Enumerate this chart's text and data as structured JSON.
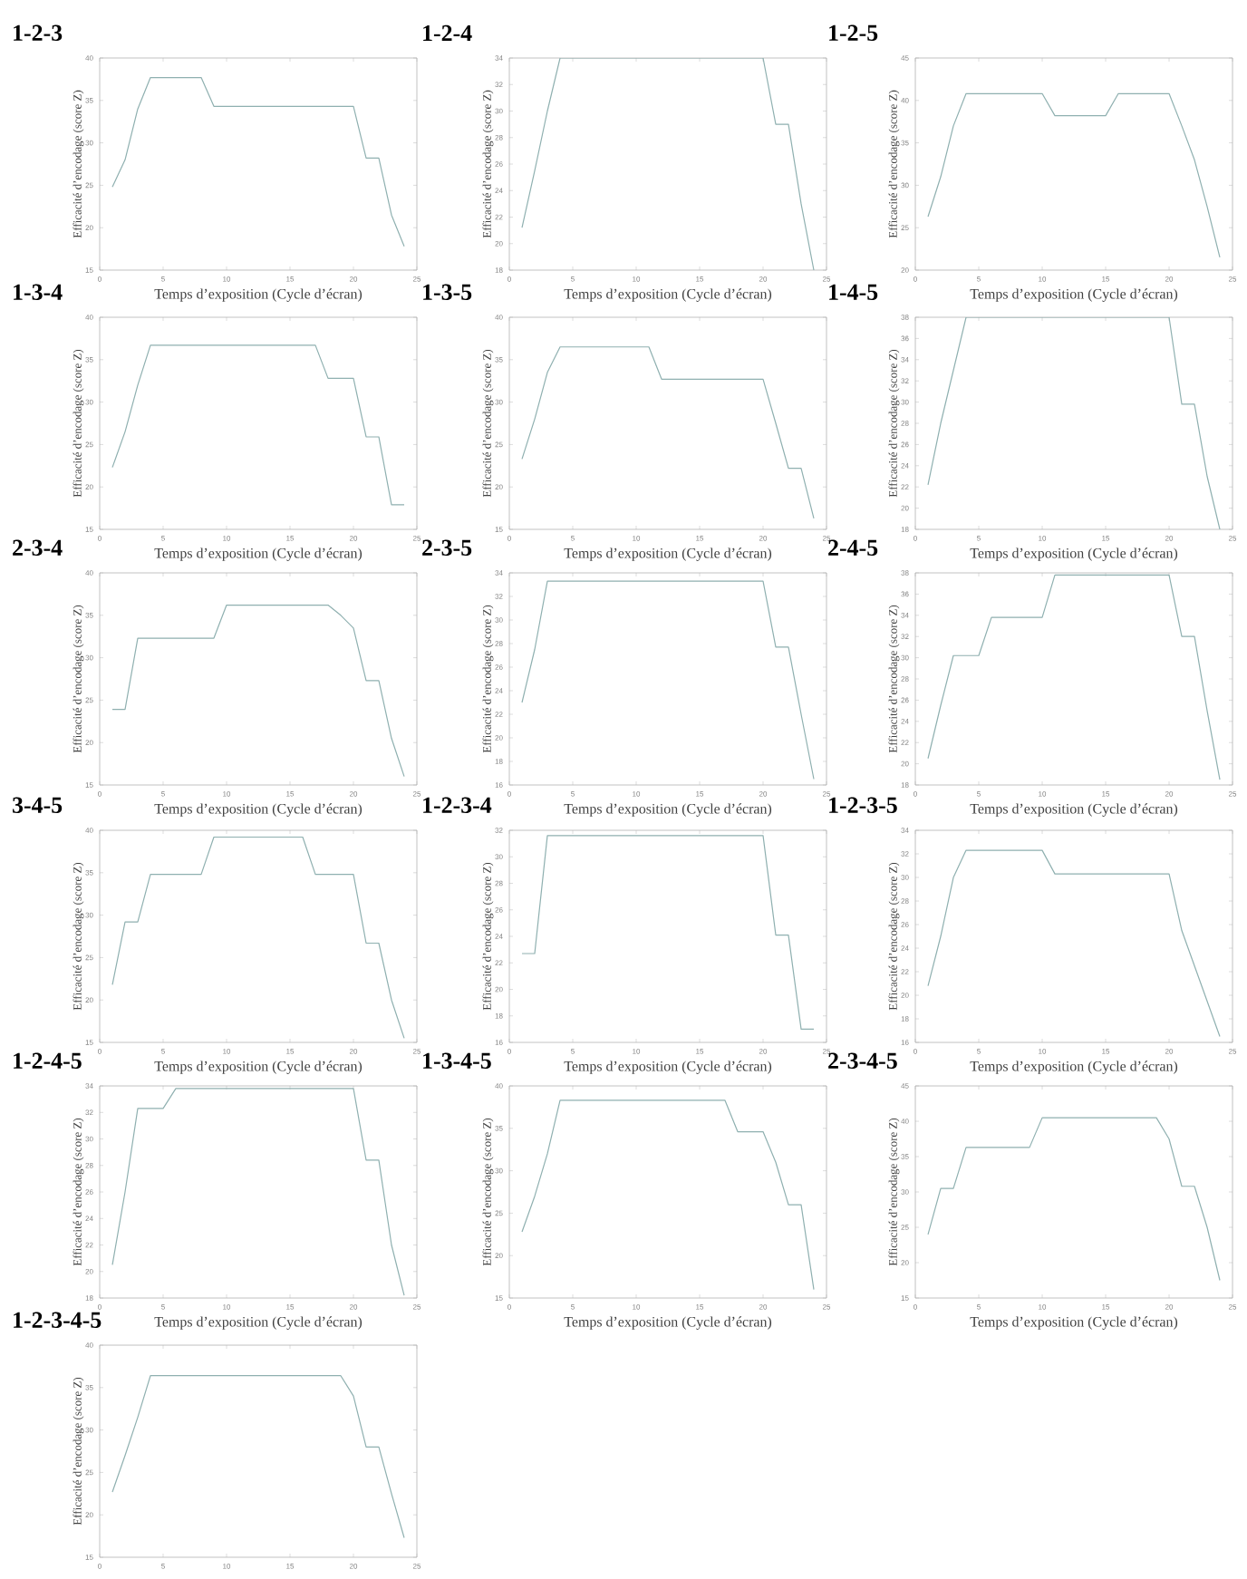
{
  "chart_data": [
    {
      "type": "line",
      "title": "1-2-3",
      "xlabel": "Temps d’exposition (Cycle d’écran)",
      "ylabel": "Efficacité d’encodage (score Z)",
      "color": "#8fb0b0",
      "xlim": [
        0,
        25
      ],
      "ylim": [
        15,
        40
      ],
      "xticks": [
        0,
        5,
        10,
        15,
        20,
        25
      ],
      "yticks": [
        15,
        20,
        25,
        30,
        35,
        40
      ],
      "x": [
        1,
        2,
        3,
        4,
        8,
        9,
        20,
        21,
        22,
        23,
        24
      ],
      "values": [
        24.8,
        28,
        34,
        37.7,
        37.7,
        34.3,
        34.3,
        28.2,
        28.2,
        21.5,
        17.8
      ]
    },
    {
      "type": "line",
      "title": "1-2-4",
      "xlabel": "Temps d’exposition (Cycle d’écran)",
      "ylabel": "Efficacité d’encodage (score Z)",
      "color": "#8fb0b0",
      "xlim": [
        0,
        25
      ],
      "ylim": [
        18,
        34
      ],
      "xticks": [
        0,
        5,
        10,
        15,
        20,
        25
      ],
      "yticks": [
        18,
        20,
        22,
        24,
        26,
        28,
        30,
        32,
        34
      ],
      "x": [
        1,
        2,
        3,
        4,
        20,
        21,
        22,
        23,
        24
      ],
      "values": [
        21.2,
        25.5,
        30,
        34,
        34,
        29,
        29,
        23,
        18
      ]
    },
    {
      "type": "line",
      "title": "1-2-5",
      "xlabel": "Temps d’exposition (Cycle d’écran)",
      "ylabel": "Efficacité d’encodage (score Z)",
      "color": "#8fb0b0",
      "xlim": [
        0,
        25
      ],
      "ylim": [
        20,
        45
      ],
      "xticks": [
        0,
        5,
        10,
        15,
        20,
        25
      ],
      "yticks": [
        20,
        25,
        30,
        35,
        40,
        45
      ],
      "x": [
        1,
        2,
        3,
        4,
        10,
        11,
        15,
        16,
        20,
        21,
        22,
        23,
        24
      ],
      "values": [
        26.3,
        31,
        37,
        40.8,
        40.8,
        38.2,
        38.2,
        40.8,
        40.8,
        37,
        33,
        27.5,
        21.5
      ]
    },
    {
      "type": "line",
      "title": "1-3-4",
      "xlabel": "Temps d’exposition (Cycle d’écran)",
      "ylabel": "Efficacité d’encodage (score Z)",
      "color": "#8fb0b0",
      "xlim": [
        0,
        25
      ],
      "ylim": [
        15,
        40
      ],
      "xticks": [
        0,
        5,
        10,
        15,
        20,
        25
      ],
      "yticks": [
        15,
        20,
        25,
        30,
        35,
        40
      ],
      "x": [
        1,
        2,
        3,
        4,
        17,
        18,
        20,
        21,
        22,
        23,
        24
      ],
      "values": [
        22.3,
        26.5,
        32,
        36.7,
        36.7,
        32.8,
        32.8,
        25.9,
        25.9,
        17.9,
        17.9
      ]
    },
    {
      "type": "line",
      "title": "1-3-5",
      "xlabel": "Temps d’exposition (Cycle d’écran)",
      "ylabel": "Efficacité d’encodage (score Z)",
      "color": "#8fb0b0",
      "xlim": [
        0,
        25
      ],
      "ylim": [
        15,
        40
      ],
      "xticks": [
        0,
        5,
        10,
        15,
        20,
        25
      ],
      "yticks": [
        15,
        20,
        25,
        30,
        35,
        40
      ],
      "x": [
        1,
        2,
        3,
        4,
        11,
        12,
        20,
        21,
        22,
        23,
        24
      ],
      "values": [
        23.3,
        28,
        33.5,
        36.5,
        36.5,
        32.7,
        32.7,
        27.5,
        22.2,
        22.2,
        16.3
      ]
    },
    {
      "type": "line",
      "title": "1-4-5",
      "xlabel": "Temps d’exposition (Cycle d’écran)",
      "ylabel": "Efficacité d’encodage (score Z)",
      "color": "#8fb0b0",
      "xlim": [
        0,
        25
      ],
      "ylim": [
        18,
        38
      ],
      "xticks": [
        0,
        5,
        10,
        15,
        20,
        25
      ],
      "yticks": [
        18,
        20,
        22,
        24,
        26,
        28,
        30,
        32,
        34,
        36,
        38
      ],
      "x": [
        1,
        2,
        3,
        4,
        20,
        21,
        22,
        23,
        24
      ],
      "values": [
        22.2,
        28,
        33,
        38,
        38,
        29.8,
        29.8,
        23,
        18
      ]
    },
    {
      "type": "line",
      "title": "2-3-4",
      "xlabel": "Temps d’exposition (Cycle d’écran)",
      "ylabel": "Efficacité d’encodage (score Z)",
      "color": "#8fb0b0",
      "xlim": [
        0,
        25
      ],
      "ylim": [
        15,
        40
      ],
      "xticks": [
        0,
        5,
        10,
        15,
        20,
        25
      ],
      "yticks": [
        15,
        20,
        25,
        30,
        35,
        40
      ],
      "x": [
        1,
        2,
        3,
        9,
        10,
        18,
        19,
        20,
        21,
        22,
        23,
        24
      ],
      "values": [
        23.9,
        23.9,
        32.3,
        32.3,
        36.2,
        36.2,
        35,
        33.5,
        27.3,
        27.3,
        20.5,
        16
      ]
    },
    {
      "type": "line",
      "title": "2-3-5",
      "xlabel": "Temps d’exposition (Cycle d’écran)",
      "ylabel": "Efficacité d’encodage (score Z)",
      "color": "#8fb0b0",
      "xlim": [
        0,
        25
      ],
      "ylim": [
        16,
        34
      ],
      "xticks": [
        0,
        5,
        10,
        15,
        20,
        25
      ],
      "yticks": [
        16,
        18,
        20,
        22,
        24,
        26,
        28,
        30,
        32,
        34
      ],
      "x": [
        1,
        2,
        3,
        20,
        21,
        22,
        23,
        24
      ],
      "values": [
        23,
        27.5,
        33.3,
        33.3,
        27.7,
        27.7,
        22,
        16.5
      ]
    },
    {
      "type": "line",
      "title": "2-4-5",
      "xlabel": "Temps d’exposition (Cycle d’écran)",
      "ylabel": "Efficacité d’encodage (score Z)",
      "color": "#8fb0b0",
      "xlim": [
        0,
        25
      ],
      "ylim": [
        18,
        38
      ],
      "xticks": [
        0,
        5,
        10,
        15,
        20,
        25
      ],
      "yticks": [
        18,
        20,
        22,
        24,
        26,
        28,
        30,
        32,
        34,
        36,
        38
      ],
      "x": [
        1,
        2,
        3,
        5,
        6,
        10,
        11,
        20,
        21,
        22,
        23,
        24
      ],
      "values": [
        20.5,
        25.5,
        30.2,
        30.2,
        33.8,
        33.8,
        37.8,
        37.8,
        32,
        32,
        25,
        18.5
      ]
    },
    {
      "type": "line",
      "title": "3-4-5",
      "xlabel": "Temps d’exposition (Cycle d’écran)",
      "ylabel": "Efficacité d’encodage (score Z)",
      "color": "#8fb0b0",
      "xlim": [
        0,
        25
      ],
      "ylim": [
        15,
        40
      ],
      "xticks": [
        0,
        5,
        10,
        15,
        20,
        25
      ],
      "yticks": [
        15,
        20,
        25,
        30,
        35,
        40
      ],
      "x": [
        1,
        2,
        3,
        4,
        8,
        9,
        16,
        17,
        20,
        21,
        22,
        23,
        24
      ],
      "values": [
        21.8,
        29.2,
        29.2,
        34.8,
        34.8,
        39.2,
        39.2,
        34.8,
        34.8,
        26.7,
        26.7,
        20,
        15.5
      ]
    },
    {
      "type": "line",
      "title": "1-2-3-4",
      "xlabel": "Temps d’exposition (Cycle d’écran)",
      "ylabel": "Efficacité d’encodage (score Z)",
      "color": "#8fb0b0",
      "xlim": [
        0,
        25
      ],
      "ylim": [
        16,
        32
      ],
      "xticks": [
        0,
        5,
        10,
        15,
        20,
        25
      ],
      "yticks": [
        16,
        18,
        20,
        22,
        24,
        26,
        28,
        30,
        32
      ],
      "x": [
        1,
        2,
        3,
        20,
        21,
        22,
        23,
        24
      ],
      "values": [
        22.7,
        22.7,
        31.6,
        31.6,
        24.1,
        24.1,
        17,
        17
      ]
    },
    {
      "type": "line",
      "title": "1-2-3-5",
      "xlabel": "Temps d’exposition (Cycle d’écran)",
      "ylabel": "Efficacité d’encodage (score Z)",
      "color": "#8fb0b0",
      "xlim": [
        0,
        25
      ],
      "ylim": [
        16,
        34
      ],
      "xticks": [
        0,
        5,
        10,
        15,
        20,
        25
      ],
      "yticks": [
        16,
        18,
        20,
        22,
        24,
        26,
        28,
        30,
        32,
        34
      ],
      "x": [
        1,
        2,
        3,
        4,
        10,
        11,
        20,
        21,
        22,
        23,
        24
      ],
      "values": [
        20.8,
        25,
        30,
        32.3,
        32.3,
        30.3,
        30.3,
        25.5,
        22.5,
        19.5,
        16.5
      ]
    },
    {
      "type": "line",
      "title": "1-2-4-5",
      "xlabel": "Temps d’exposition (Cycle d’écran)",
      "ylabel": "Efficacité d’encodage (score Z)",
      "color": "#8fb0b0",
      "xlim": [
        0,
        25
      ],
      "ylim": [
        18,
        34
      ],
      "xticks": [
        0,
        5,
        10,
        15,
        20,
        25
      ],
      "yticks": [
        18,
        20,
        22,
        24,
        26,
        28,
        30,
        32,
        34
      ],
      "x": [
        1,
        2,
        3,
        5,
        6,
        20,
        21,
        22,
        23,
        24
      ],
      "values": [
        20.5,
        26,
        32.3,
        32.3,
        33.8,
        33.8,
        28.4,
        28.4,
        22,
        18.2
      ]
    },
    {
      "type": "line",
      "title": "1-3-4-5",
      "xlabel": "Temps d’exposition (Cycle d’écran)",
      "ylabel": "Efficacité d’encodage (score Z)",
      "color": "#8fb0b0",
      "xlim": [
        0,
        25
      ],
      "ylim": [
        15,
        40
      ],
      "xticks": [
        0,
        5,
        10,
        15,
        20,
        25
      ],
      "yticks": [
        15,
        20,
        25,
        30,
        35,
        40
      ],
      "x": [
        1,
        2,
        3,
        4,
        17,
        18,
        20,
        21,
        22,
        23,
        24
      ],
      "values": [
        22.8,
        27,
        32,
        38.3,
        38.3,
        34.6,
        34.6,
        31,
        26,
        26,
        16
      ]
    },
    {
      "type": "line",
      "title": "2-3-4-5",
      "xlabel": "Temps d’exposition (Cycle d’écran)",
      "ylabel": "Efficacité d’encodage (score Z)",
      "color": "#8fb0b0",
      "xlim": [
        0,
        25
      ],
      "ylim": [
        15,
        45
      ],
      "xticks": [
        0,
        5,
        10,
        15,
        20,
        25
      ],
      "yticks": [
        15,
        20,
        25,
        30,
        35,
        40,
        45
      ],
      "x": [
        1,
        2,
        3,
        4,
        9,
        10,
        19,
        20,
        21,
        22,
        23,
        24
      ],
      "values": [
        24,
        30.5,
        30.5,
        36.3,
        36.3,
        40.5,
        40.5,
        37.5,
        30.8,
        30.8,
        25,
        17.5
      ]
    },
    {
      "type": "line",
      "title": "1-2-3-4-5",
      "ylabel": "Efficacité d’encodage (score Z)",
      "color": "#8fb0b0",
      "xlim": [
        0,
        25
      ],
      "ylim": [
        15,
        40
      ],
      "xticks": [
        0,
        5,
        10,
        15,
        20,
        25
      ],
      "yticks": [
        15,
        20,
        25,
        30,
        35,
        40
      ],
      "x": [
        1,
        2,
        3,
        4,
        19,
        20,
        21,
        22,
        23,
        24
      ],
      "values": [
        22.7,
        27,
        31.5,
        36.4,
        36.4,
        34,
        28,
        28,
        22.5,
        17.3
      ]
    }
  ]
}
